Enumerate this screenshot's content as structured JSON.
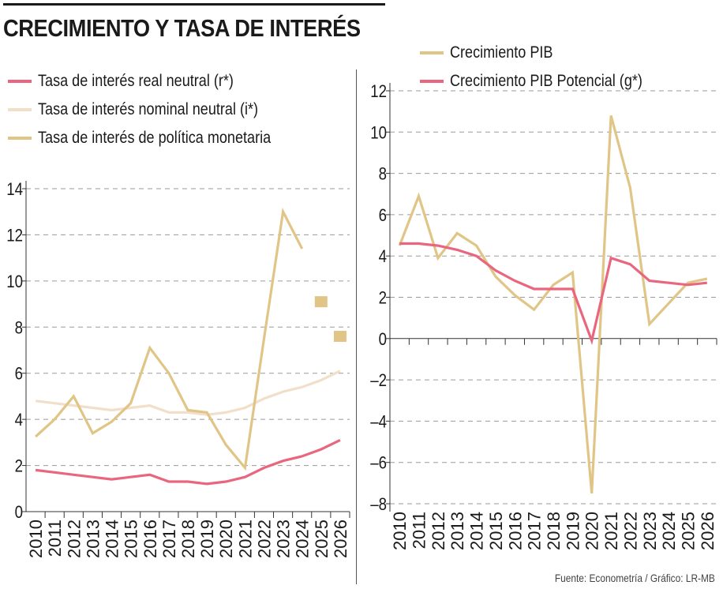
{
  "header": {
    "title": "CRECIMIENTO Y TASA DE INTERÉS"
  },
  "footer": {
    "source": "Fuente: Econometría / Gráfico: LR-MB"
  },
  "chart_data": [
    {
      "type": "line",
      "title": "",
      "xlabel": "",
      "ylabel": "",
      "categories": [
        "2010",
        "2011",
        "2012",
        "2013",
        "2014",
        "2015",
        "2016",
        "2017",
        "2018",
        "2019",
        "2020",
        "2021",
        "2022",
        "2023",
        "2024",
        "2025",
        "2026"
      ],
      "yticks": [
        "0",
        "2",
        "4",
        "6",
        "8",
        "10",
        "12",
        "14"
      ],
      "ylim": [
        0,
        14
      ],
      "grid": true,
      "legend_position": "top-left",
      "series": [
        {
          "name": "Tasa de interés real neutral (r*)",
          "color": "#e8677f",
          "values": [
            1.8,
            1.7,
            1.6,
            1.5,
            1.4,
            1.5,
            1.6,
            1.3,
            1.3,
            1.2,
            1.3,
            1.5,
            1.9,
            2.2,
            2.4,
            2.7,
            3.1
          ]
        },
        {
          "name": "Tasa de interés nominal neutral (i*)",
          "color": "#f2dfca",
          "values": [
            4.8,
            4.7,
            4.6,
            4.5,
            4.4,
            4.5,
            4.6,
            4.3,
            4.3,
            4.2,
            4.3,
            4.5,
            4.9,
            5.2,
            5.4,
            5.7,
            6.1
          ]
        },
        {
          "name": "Tasa de interés de política monetaria",
          "color": "#e0c587",
          "values": [
            3.25,
            4.0,
            5.0,
            3.4,
            3.9,
            4.7,
            7.1,
            6.0,
            4.4,
            4.3,
            2.9,
            1.9,
            7.5,
            13.0,
            11.4,
            null,
            null
          ],
          "markers": [
            {
              "x": "2025",
              "y": 9.1
            },
            {
              "x": "2026",
              "y": 7.6
            }
          ]
        }
      ]
    },
    {
      "type": "line",
      "title": "",
      "xlabel": "",
      "ylabel": "",
      "categories": [
        "2010",
        "2011",
        "2012",
        "2013",
        "2014",
        "2015",
        "2016",
        "2017",
        "2018",
        "2019",
        "2020",
        "2021",
        "2022",
        "2023",
        "2024",
        "2025",
        "2026"
      ],
      "yticks": [
        "–8",
        "–6",
        "–4",
        "–2",
        "0",
        "2",
        "4",
        "6",
        "8",
        "10",
        "12"
      ],
      "ylim": [
        -8,
        12
      ],
      "grid": true,
      "legend_position": "top-right",
      "series": [
        {
          "name": "Crecimiento PIB",
          "color": "#e0c587",
          "values": [
            4.5,
            6.9,
            3.9,
            5.1,
            4.5,
            3.0,
            2.1,
            1.4,
            2.6,
            3.2,
            -7.5,
            10.8,
            7.3,
            0.7,
            1.7,
            2.7,
            2.9
          ]
        },
        {
          "name": "Crecimiento PIB Potencial (g*)",
          "color": "#e8677f",
          "values": [
            4.6,
            4.6,
            4.5,
            4.3,
            4.0,
            3.3,
            2.8,
            2.4,
            2.4,
            2.4,
            -0.1,
            3.9,
            3.6,
            2.8,
            2.7,
            2.6,
            2.7
          ]
        }
      ]
    }
  ]
}
